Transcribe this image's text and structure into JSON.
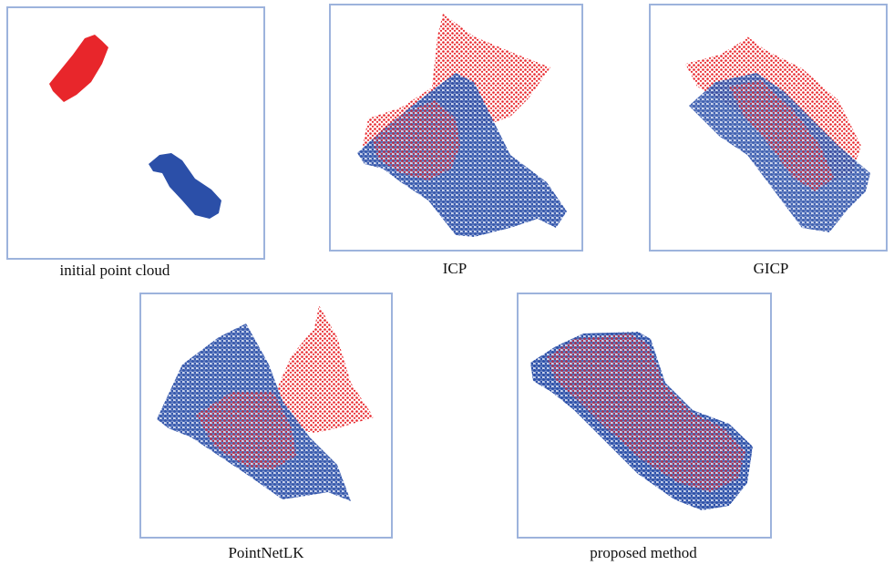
{
  "panels": [
    {
      "caption": "initial point cloud"
    },
    {
      "caption": "ICP"
    },
    {
      "caption": "GICP"
    },
    {
      "caption": "PointNetLK"
    },
    {
      "caption": "proposed method"
    }
  ]
}
